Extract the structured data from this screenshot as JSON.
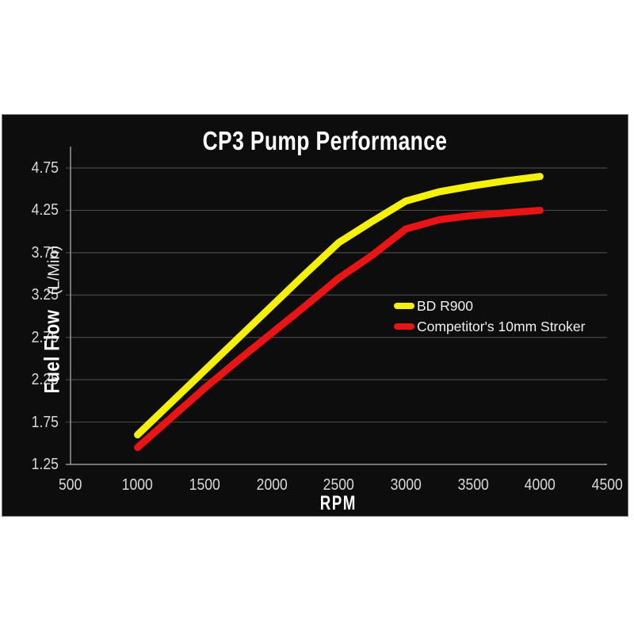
{
  "page": {
    "background": "#ffffff",
    "panel_background": "#0d0d0d",
    "panel_border": "#7a7a7a"
  },
  "chart_data": {
    "type": "line",
    "title": "CP3 Pump Performance",
    "xlabel": "RPM",
    "ylabel": "Fuel Flow",
    "ylabel_unit": "(L/Min)",
    "xlim": [
      500,
      4500
    ],
    "ylim": [
      1.25,
      4.75
    ],
    "xticks": [
      500,
      1000,
      1500,
      2000,
      2500,
      3000,
      3500,
      4000,
      4500
    ],
    "yticks": [
      4.75,
      4.25,
      3.75,
      3.25,
      2.75,
      2.25,
      1.75,
      1.25
    ],
    "grid": "horizontal",
    "legend_position": "center-right",
    "colors": {
      "background": "#0d0d0d",
      "gridline": "#464646",
      "axis": "#9a9a9a",
      "tick_label": "#d9d9d9",
      "title": "#ffffff",
      "legend_text": "#f0f0f0"
    },
    "x": [
      1000,
      1250,
      1500,
      1750,
      2000,
      2250,
      2500,
      2750,
      3000,
      3250,
      3500,
      3750,
      4000
    ],
    "series": [
      {
        "name": "BD R900",
        "color": "#f4f107",
        "values": [
          1.6,
          1.98,
          2.36,
          2.74,
          3.12,
          3.5,
          3.87,
          4.12,
          4.36,
          4.47,
          4.54,
          4.6,
          4.65
        ]
      },
      {
        "name": "Competitor's 10mm Stroker",
        "color": "#ea1414",
        "values": [
          1.45,
          1.8,
          2.15,
          2.48,
          2.8,
          3.12,
          3.45,
          3.72,
          4.03,
          4.14,
          4.19,
          4.22,
          4.25
        ]
      }
    ]
  }
}
